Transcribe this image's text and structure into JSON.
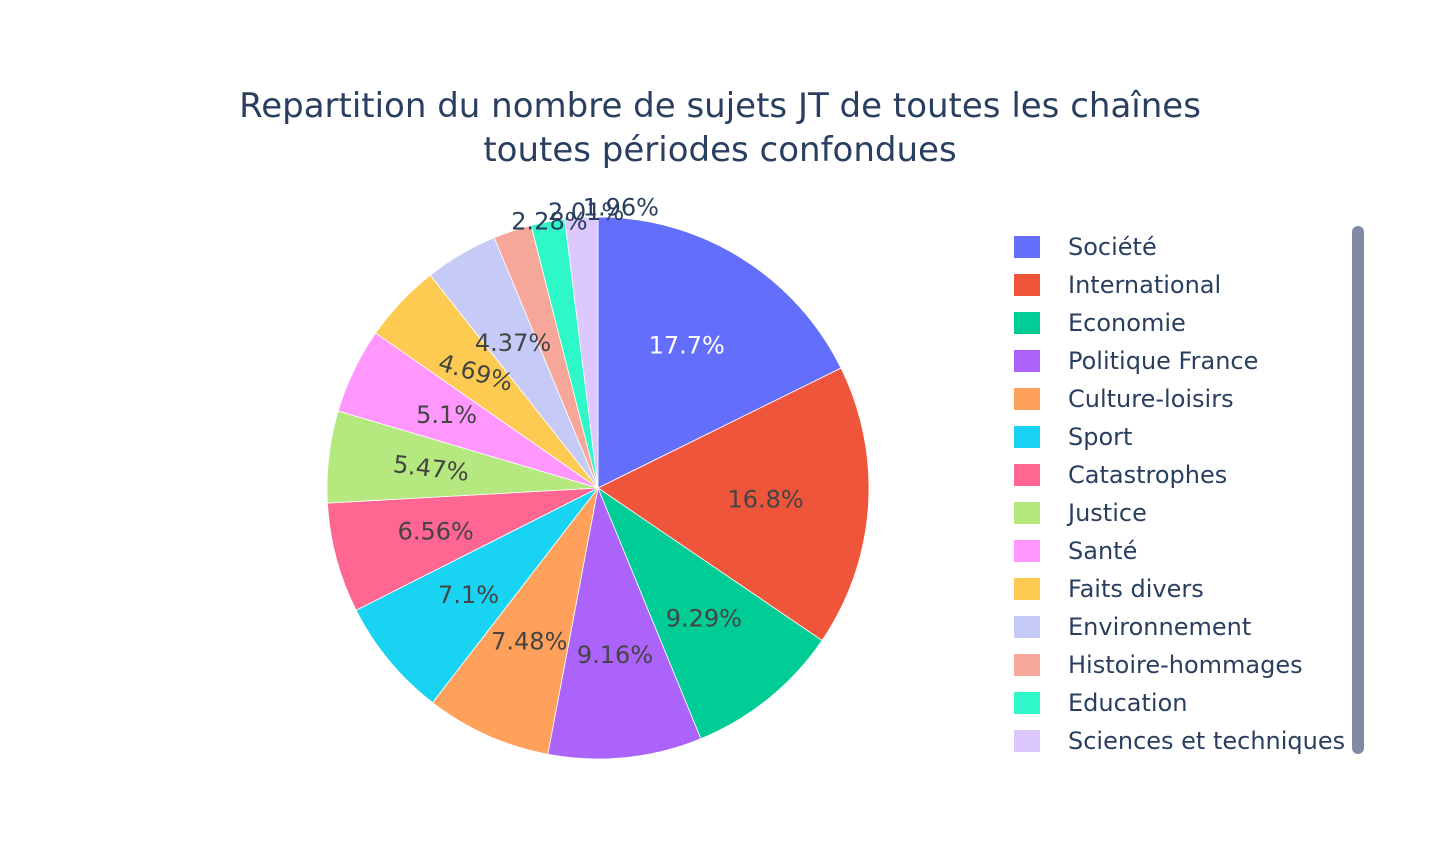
{
  "chart_data": {
    "type": "pie",
    "title_lines": [
      "Repartition du nombre de sujets JT de toutes les chaînes",
      "toutes périodes confondues"
    ],
    "slices": [
      {
        "label": "Société",
        "value": 17.7,
        "text": "17.7%",
        "color": "#636efa",
        "text_color": "#ffffff"
      },
      {
        "label": "International",
        "value": 16.8,
        "text": "16.8%",
        "color": "#EF553B",
        "text_color": "#444444"
      },
      {
        "label": "Economie",
        "value": 9.29,
        "text": "9.29%",
        "color": "#00cc96",
        "text_color": "#444444"
      },
      {
        "label": "Politique France",
        "value": 9.16,
        "text": "9.16%",
        "color": "#ab63fa",
        "text_color": "#444444"
      },
      {
        "label": "Culture-loisirs",
        "value": 7.48,
        "text": "7.48%",
        "color": "#FFA15A",
        "text_color": "#444444"
      },
      {
        "label": "Sport",
        "value": 7.1,
        "text": "7.1%",
        "color": "#19d3f3",
        "text_color": "#444444"
      },
      {
        "label": "Catastrophes",
        "value": 6.56,
        "text": "6.56%",
        "color": "#FF6692",
        "text_color": "#444444"
      },
      {
        "label": "Justice",
        "value": 5.47,
        "text": "5.47%",
        "color": "#B6E880",
        "text_color": "#444444"
      },
      {
        "label": "Santé",
        "value": 5.1,
        "text": "5.1%",
        "color": "#FF97FF",
        "text_color": "#444444"
      },
      {
        "label": "Faits divers",
        "value": 4.69,
        "text": "4.69%",
        "color": "#FECB52",
        "text_color": "#444444"
      },
      {
        "label": "Environnement",
        "value": 4.37,
        "text": "4.37%",
        "color": "#c6caf7",
        "text_color": "#444444"
      },
      {
        "label": "Histoire-hommages",
        "value": 2.28,
        "text": "2.28%",
        "color": "#f7a799",
        "text_color": "#2a3f5f"
      },
      {
        "label": "Education",
        "value": 2.01,
        "text": "2.01%",
        "color": "#2ef8c8",
        "text_color": "#2a3f5f"
      },
      {
        "label": "Sciences et techniques",
        "value": 1.96,
        "text": "1.96%",
        "color": "#ddc8fb",
        "text_color": "#2a3f5f"
      }
    ],
    "direction": "clockwise",
    "start_angle": "top",
    "legend_position": "right"
  }
}
